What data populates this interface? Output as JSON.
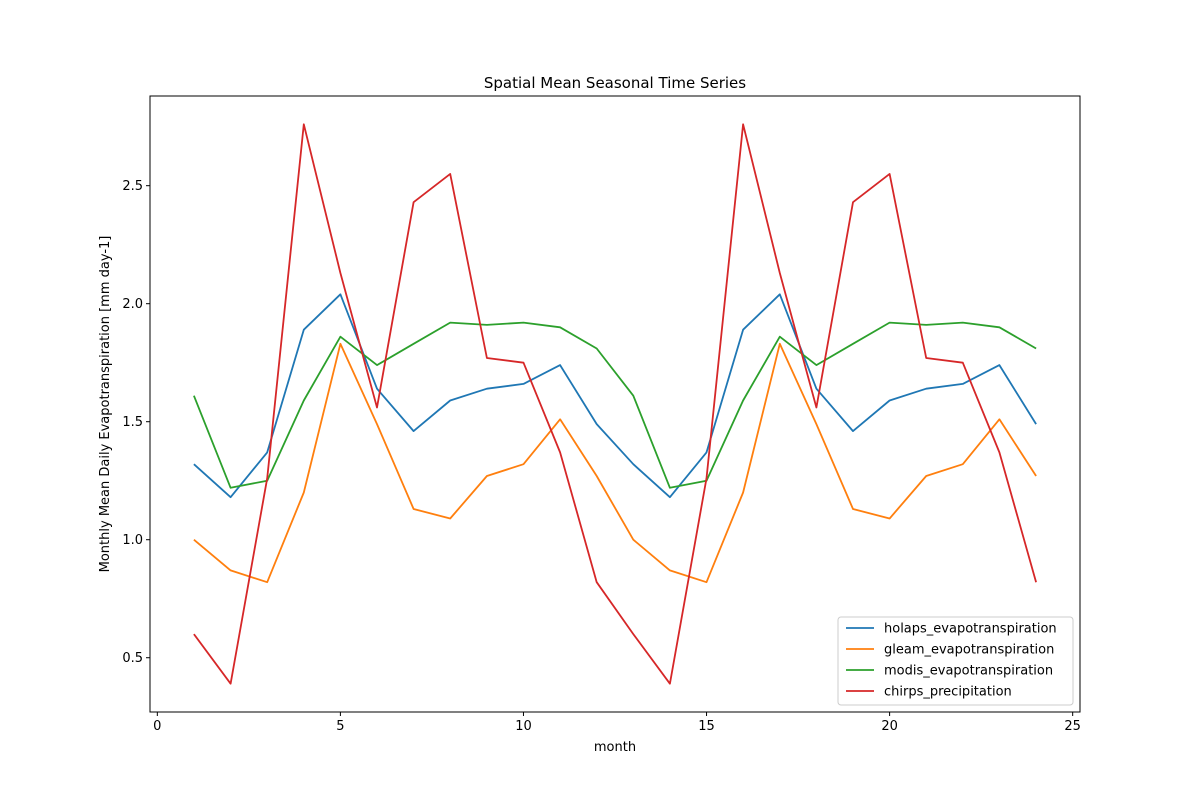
{
  "chart_data": {
    "type": "line",
    "title": "Spatial Mean Seasonal Time Series",
    "xlabel": "month",
    "ylabel": "Monthly Mean Daily Evapotranspiration [mm day-1]",
    "xlim": [
      -0.2,
      25.2
    ],
    "ylim": [
      0.27,
      2.88
    ],
    "xticks": [
      0,
      5,
      10,
      15,
      20,
      25
    ],
    "xtick_labels": [
      "0",
      "5",
      "10",
      "15",
      "20",
      "25"
    ],
    "yticks": [
      0.5,
      1.0,
      1.5,
      2.0,
      2.5
    ],
    "ytick_labels": [
      "0.5",
      "1.0",
      "1.5",
      "2.0",
      "2.5"
    ],
    "legend_position": "lower-right",
    "grid": false,
    "x": [
      1,
      2,
      3,
      4,
      5,
      6,
      7,
      8,
      9,
      10,
      11,
      12,
      13,
      14,
      15,
      16,
      17,
      18,
      19,
      20,
      21,
      22,
      23,
      24
    ],
    "series": [
      {
        "name": "holaps_evapotranspiration",
        "color": "#1f77b4",
        "values": [
          1.32,
          1.18,
          1.37,
          1.89,
          2.04,
          1.64,
          1.46,
          1.59,
          1.64,
          1.66,
          1.74,
          1.49,
          1.32,
          1.18,
          1.37,
          1.89,
          2.04,
          1.64,
          1.46,
          1.59,
          1.64,
          1.66,
          1.74,
          1.49
        ]
      },
      {
        "name": "gleam_evapotranspiration",
        "color": "#ff7f0e",
        "values": [
          1.0,
          0.87,
          0.82,
          1.2,
          1.83,
          1.49,
          1.13,
          1.09,
          1.27,
          1.32,
          1.51,
          1.27,
          1.0,
          0.87,
          0.82,
          1.2,
          1.83,
          1.49,
          1.13,
          1.09,
          1.27,
          1.32,
          1.51,
          1.27
        ]
      },
      {
        "name": "modis_evapotranspiration",
        "color": "#2ca02c",
        "values": [
          1.61,
          1.22,
          1.25,
          1.59,
          1.86,
          1.74,
          1.83,
          1.92,
          1.91,
          1.92,
          1.9,
          1.81,
          1.61,
          1.22,
          1.25,
          1.59,
          1.86,
          1.74,
          1.83,
          1.92,
          1.91,
          1.92,
          1.9,
          1.81
        ]
      },
      {
        "name": "chirps_precipitation",
        "color": "#d62728",
        "values": [
          0.6,
          0.39,
          1.26,
          2.76,
          2.13,
          1.56,
          2.43,
          2.55,
          1.77,
          1.75,
          1.37,
          0.82,
          0.6,
          0.39,
          1.26,
          2.76,
          2.13,
          1.56,
          2.43,
          2.55,
          1.77,
          1.75,
          1.37,
          0.82
        ]
      }
    ]
  }
}
